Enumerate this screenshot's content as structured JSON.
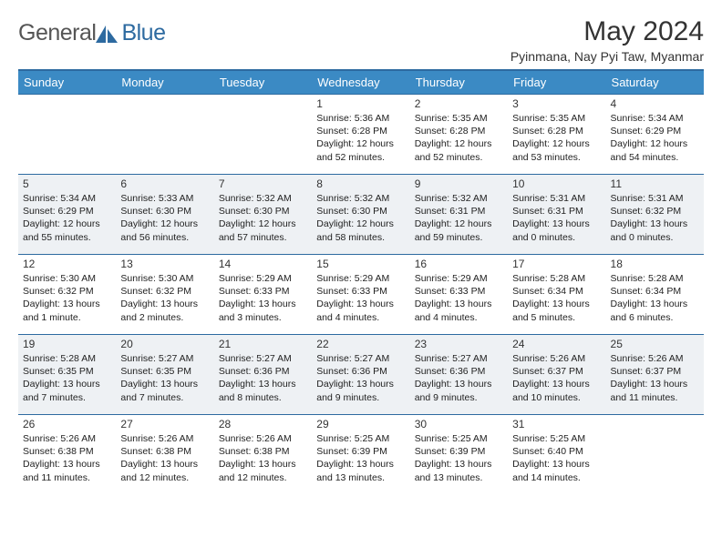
{
  "logo": {
    "word1": "General",
    "word2": "Blue"
  },
  "title": "May 2024",
  "subtitle": "Pyinmana, Nay Pyi Taw, Myanmar",
  "header_bg": "#3b8ac4",
  "border_color": "#2d6aa0",
  "alt_row_bg": "#eef1f4",
  "day_headers": [
    "Sunday",
    "Monday",
    "Tuesday",
    "Wednesday",
    "Thursday",
    "Friday",
    "Saturday"
  ],
  "weeks": [
    {
      "alt": false,
      "days": [
        null,
        null,
        null,
        {
          "n": "1",
          "sr": "Sunrise: 5:36 AM",
          "ss": "Sunset: 6:28 PM",
          "dl": "Daylight: 12 hours and 52 minutes."
        },
        {
          "n": "2",
          "sr": "Sunrise: 5:35 AM",
          "ss": "Sunset: 6:28 PM",
          "dl": "Daylight: 12 hours and 52 minutes."
        },
        {
          "n": "3",
          "sr": "Sunrise: 5:35 AM",
          "ss": "Sunset: 6:28 PM",
          "dl": "Daylight: 12 hours and 53 minutes."
        },
        {
          "n": "4",
          "sr": "Sunrise: 5:34 AM",
          "ss": "Sunset: 6:29 PM",
          "dl": "Daylight: 12 hours and 54 minutes."
        }
      ]
    },
    {
      "alt": true,
      "days": [
        {
          "n": "5",
          "sr": "Sunrise: 5:34 AM",
          "ss": "Sunset: 6:29 PM",
          "dl": "Daylight: 12 hours and 55 minutes."
        },
        {
          "n": "6",
          "sr": "Sunrise: 5:33 AM",
          "ss": "Sunset: 6:30 PM",
          "dl": "Daylight: 12 hours and 56 minutes."
        },
        {
          "n": "7",
          "sr": "Sunrise: 5:32 AM",
          "ss": "Sunset: 6:30 PM",
          "dl": "Daylight: 12 hours and 57 minutes."
        },
        {
          "n": "8",
          "sr": "Sunrise: 5:32 AM",
          "ss": "Sunset: 6:30 PM",
          "dl": "Daylight: 12 hours and 58 minutes."
        },
        {
          "n": "9",
          "sr": "Sunrise: 5:32 AM",
          "ss": "Sunset: 6:31 PM",
          "dl": "Daylight: 12 hours and 59 minutes."
        },
        {
          "n": "10",
          "sr": "Sunrise: 5:31 AM",
          "ss": "Sunset: 6:31 PM",
          "dl": "Daylight: 13 hours and 0 minutes."
        },
        {
          "n": "11",
          "sr": "Sunrise: 5:31 AM",
          "ss": "Sunset: 6:32 PM",
          "dl": "Daylight: 13 hours and 0 minutes."
        }
      ]
    },
    {
      "alt": false,
      "days": [
        {
          "n": "12",
          "sr": "Sunrise: 5:30 AM",
          "ss": "Sunset: 6:32 PM",
          "dl": "Daylight: 13 hours and 1 minute."
        },
        {
          "n": "13",
          "sr": "Sunrise: 5:30 AM",
          "ss": "Sunset: 6:32 PM",
          "dl": "Daylight: 13 hours and 2 minutes."
        },
        {
          "n": "14",
          "sr": "Sunrise: 5:29 AM",
          "ss": "Sunset: 6:33 PM",
          "dl": "Daylight: 13 hours and 3 minutes."
        },
        {
          "n": "15",
          "sr": "Sunrise: 5:29 AM",
          "ss": "Sunset: 6:33 PM",
          "dl": "Daylight: 13 hours and 4 minutes."
        },
        {
          "n": "16",
          "sr": "Sunrise: 5:29 AM",
          "ss": "Sunset: 6:33 PM",
          "dl": "Daylight: 13 hours and 4 minutes."
        },
        {
          "n": "17",
          "sr": "Sunrise: 5:28 AM",
          "ss": "Sunset: 6:34 PM",
          "dl": "Daylight: 13 hours and 5 minutes."
        },
        {
          "n": "18",
          "sr": "Sunrise: 5:28 AM",
          "ss": "Sunset: 6:34 PM",
          "dl": "Daylight: 13 hours and 6 minutes."
        }
      ]
    },
    {
      "alt": true,
      "days": [
        {
          "n": "19",
          "sr": "Sunrise: 5:28 AM",
          "ss": "Sunset: 6:35 PM",
          "dl": "Daylight: 13 hours and 7 minutes."
        },
        {
          "n": "20",
          "sr": "Sunrise: 5:27 AM",
          "ss": "Sunset: 6:35 PM",
          "dl": "Daylight: 13 hours and 7 minutes."
        },
        {
          "n": "21",
          "sr": "Sunrise: 5:27 AM",
          "ss": "Sunset: 6:36 PM",
          "dl": "Daylight: 13 hours and 8 minutes."
        },
        {
          "n": "22",
          "sr": "Sunrise: 5:27 AM",
          "ss": "Sunset: 6:36 PM",
          "dl": "Daylight: 13 hours and 9 minutes."
        },
        {
          "n": "23",
          "sr": "Sunrise: 5:27 AM",
          "ss": "Sunset: 6:36 PM",
          "dl": "Daylight: 13 hours and 9 minutes."
        },
        {
          "n": "24",
          "sr": "Sunrise: 5:26 AM",
          "ss": "Sunset: 6:37 PM",
          "dl": "Daylight: 13 hours and 10 minutes."
        },
        {
          "n": "25",
          "sr": "Sunrise: 5:26 AM",
          "ss": "Sunset: 6:37 PM",
          "dl": "Daylight: 13 hours and 11 minutes."
        }
      ]
    },
    {
      "alt": false,
      "days": [
        {
          "n": "26",
          "sr": "Sunrise: 5:26 AM",
          "ss": "Sunset: 6:38 PM",
          "dl": "Daylight: 13 hours and 11 minutes."
        },
        {
          "n": "27",
          "sr": "Sunrise: 5:26 AM",
          "ss": "Sunset: 6:38 PM",
          "dl": "Daylight: 13 hours and 12 minutes."
        },
        {
          "n": "28",
          "sr": "Sunrise: 5:26 AM",
          "ss": "Sunset: 6:38 PM",
          "dl": "Daylight: 13 hours and 12 minutes."
        },
        {
          "n": "29",
          "sr": "Sunrise: 5:25 AM",
          "ss": "Sunset: 6:39 PM",
          "dl": "Daylight: 13 hours and 13 minutes."
        },
        {
          "n": "30",
          "sr": "Sunrise: 5:25 AM",
          "ss": "Sunset: 6:39 PM",
          "dl": "Daylight: 13 hours and 13 minutes."
        },
        {
          "n": "31",
          "sr": "Sunrise: 5:25 AM",
          "ss": "Sunset: 6:40 PM",
          "dl": "Daylight: 13 hours and 14 minutes."
        },
        null
      ]
    }
  ]
}
